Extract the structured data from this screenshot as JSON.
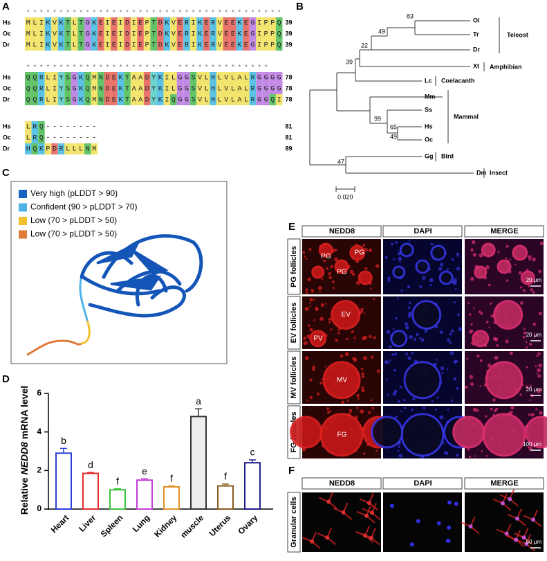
{
  "panels": {
    "A": {
      "label": "A",
      "blocks": [
        {
          "conservation": "***************************************",
          "rows": [
            {
              "species": "Hs",
              "sequence": "MLIKVKTLTGKEIEIDIEPTDKVERIKERVEEKEGIPPQ",
              "end": 39
            },
            {
              "species": "Oc",
              "sequence": "MLIKVKTLTGKEIEIDIEPTDKVERIKERVEEKEGIPPQ",
              "end": 39
            },
            {
              "species": "Dr",
              "sequence": "MLIKVKTLTGKEIEIDIEPTDKVERIKERVEEKEGIPPQ",
              "end": 39
            }
          ]
        },
        {
          "conservation": "********************** **************  ",
          "rows": [
            {
              "species": "Hs",
              "sequence": "QQRLIYSGKQMNDEKTAADYKILGGSVLHLVLALRGGGG",
              "end": 78
            },
            {
              "species": "Oc",
              "sequence": "QQRLIYSGKQMNDEKTAADYKILGGSVLHLVLALRGGGG",
              "end": 78
            },
            {
              "species": "Dr",
              "sequence": "QQRLIYSGKQMNDEKTAADYKIQGGSVLHLVLALRGGQI",
              "end": 78
            }
          ]
        },
        {
          "rows": [
            {
              "species": "Hs",
              "sequence": "LRQ--------",
              "end": 81
            },
            {
              "species": "Oc",
              "sequence": "LRQ--------",
              "end": 81
            },
            {
              "species": "Dr",
              "sequence": "HQKPDRLLLNM",
              "end": 89
            }
          ]
        }
      ]
    },
    "B": {
      "label": "B",
      "leaves": [
        "Ol",
        "Tr",
        "Dr",
        "Xt",
        "Lc",
        "Mm",
        "Ss",
        "Hs",
        "Oc",
        "Gg",
        "Dm"
      ],
      "bootstrap": [
        83,
        49,
        22,
        39,
        99,
        65,
        49,
        47
      ],
      "groups": [
        "Teleost",
        "Amphibian",
        "Coelacanth",
        "Mammal",
        "Bird",
        "Insect"
      ],
      "scale": "0.020"
    },
    "C": {
      "label": "C",
      "legend": [
        {
          "label": "Very high (pLDDT > 90)",
          "color": "#1565c0"
        },
        {
          "label": "Confident (90 > pLDDT > 70)",
          "color": "#4fb3e8"
        },
        {
          "label": "Low (70 > pLDDT > 50)",
          "color": "#f2c12e"
        },
        {
          "label": "Low (70 > pLDDT > 50)",
          "color": "#e07b39"
        }
      ]
    },
    "D": {
      "label": "D"
    },
    "E": {
      "label": "E",
      "headers": [
        "NEDD8",
        "DAPI",
        "MERGE"
      ],
      "rows": [
        {
          "label": "PG follicles",
          "marks": [
            "PG",
            "PG",
            "PG"
          ],
          "scale": "20 μm"
        },
        {
          "label": "EV follicles",
          "marks": [
            "EV",
            "PV"
          ],
          "scale": "20 μm"
        },
        {
          "label": "MV follicles",
          "marks": [
            "MV"
          ],
          "scale": "20 μm"
        },
        {
          "label": "FG follicles",
          "marks": [
            "FG"
          ],
          "scale": "100 μm"
        }
      ]
    },
    "F": {
      "label": "F",
      "headers": [
        "NEDD8",
        "DAPI",
        "MERGE"
      ],
      "rows": [
        {
          "label": "Granular cells",
          "scale": "50 μm"
        }
      ]
    }
  },
  "chart_data": {
    "type": "bar",
    "ylabel": [
      "Relative ",
      "NEDD8",
      " mRNA level"
    ],
    "categories": [
      "Heart",
      "Liver",
      "Spleen",
      "Lung",
      "Kidney",
      "muscle",
      "Uterus",
      "Ovary"
    ],
    "values": [
      2.9,
      1.85,
      1.0,
      1.5,
      1.15,
      4.8,
      1.2,
      2.4
    ],
    "errors": [
      0.25,
      0.05,
      0.05,
      0.07,
      0.05,
      0.4,
      0.1,
      0.15
    ],
    "annotations": [
      "b",
      "d",
      "f",
      "e",
      "f",
      "a",
      "f",
      "c"
    ],
    "colors": [
      "#2b3fd6",
      "#e52b2b",
      "#3cc43c",
      "#c43cd6",
      "#e0922a",
      "#333333",
      "#8a5a1e",
      "#1e1e8a"
    ],
    "fills": [
      "#ffffff",
      "#ffffff",
      "#ffffff",
      "#ffffff",
      "#ffffff",
      "#eeeeee",
      "#ffffff",
      "#ffffff"
    ],
    "ylim": [
      0,
      6
    ],
    "yticks": [
      0,
      2,
      4,
      6
    ]
  }
}
